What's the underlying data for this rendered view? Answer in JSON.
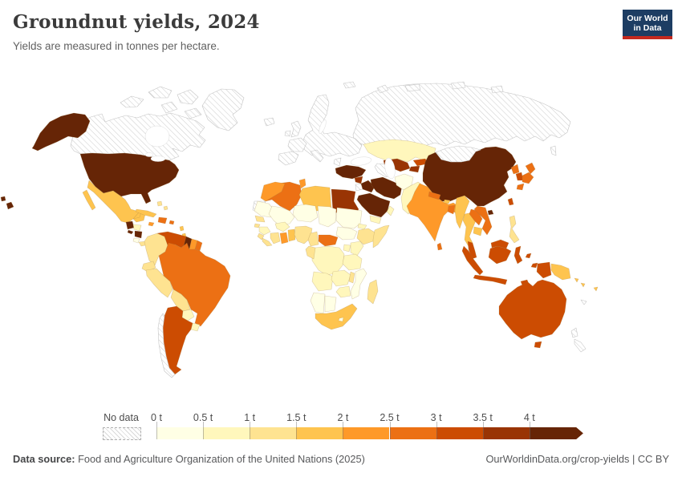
{
  "header": {
    "title": "Groundnut yields, 2024",
    "subtitle": "Yields are measured in tonnes per hectare.",
    "logo": {
      "line1": "Our World",
      "line2": "in Data",
      "bg_color": "#1d3d63",
      "accent_color": "#c5291f"
    }
  },
  "legend": {
    "no_data_label": "No data",
    "tick_labels": [
      "0 t",
      "0.5 t",
      "1 t",
      "1.5 t",
      "2 t",
      "2.5 t",
      "3 t",
      "3.5 t",
      "4 t"
    ],
    "palette": [
      "#ffffe5",
      "#fff7bc",
      "#fee391",
      "#fec44f",
      "#fe9929",
      "#ec7014",
      "#cc4c02",
      "#993404",
      "#662506"
    ]
  },
  "footer": {
    "source_label": "Data source:",
    "source_text": " Food and Agriculture Organization of the United Nations (2025)",
    "link_text": "OurWorldinData.org/crop-yields | CC BY"
  },
  "map": {
    "ocean_color": "#ffffff",
    "border_color": "#9c7a45",
    "nodata_border": "#c4c4c4",
    "hatch_line_color": "#cfcfcf"
  },
  "chart_data": {
    "type": "choropleth_map",
    "title": "Groundnut yields, 2024",
    "unit": "tonnes per hectare",
    "legend_bins": [
      "0 t",
      "0.5 t",
      "1 t",
      "1.5 t",
      "2 t",
      "2.5 t",
      "3 t",
      "3.5 t",
      "4 t"
    ],
    "bin_ranges": [
      "0–0.5 t",
      "0.5–1 t",
      "1–1.5 t",
      "1.5–2 t",
      "2–2.5 t",
      "2.5–3 t",
      "3–3.5 t",
      "3.5–4 t",
      "4+ t"
    ],
    "no_data_label": "No data",
    "regions": [
      {
        "id": "russia",
        "name": "Russia",
        "bucket": "nd"
      },
      {
        "id": "svalbard",
        "name": "Arctic islands",
        "bucket": "nd"
      },
      {
        "id": "canada",
        "name": "Canada",
        "bucket": "nd"
      },
      {
        "id": "canada_arctic",
        "name": "Canadian Arctic islands",
        "bucket": "nd"
      },
      {
        "id": "greenland",
        "name": "Greenland",
        "bucket": "nd"
      },
      {
        "id": "iceland",
        "name": "Iceland",
        "bucket": "nd"
      },
      {
        "id": "uk",
        "name": "United Kingdom",
        "bucket": "nd"
      },
      {
        "id": "ireland",
        "name": "Ireland",
        "bucket": "nd"
      },
      {
        "id": "europe",
        "name": "Europe (no data)",
        "bucket": "nd"
      },
      {
        "id": "iberia",
        "name": "Spain and Portugal",
        "bucket": "nd"
      },
      {
        "id": "france",
        "name": "France",
        "bucket": "nd"
      },
      {
        "id": "italy",
        "name": "Italy",
        "bucket": "nd"
      },
      {
        "id": "greece",
        "name": "Greece",
        "bucket": "nd"
      },
      {
        "id": "usa",
        "name": "United States",
        "bucket": 8
      },
      {
        "id": "mexico",
        "name": "Mexico",
        "bucket": 3
      },
      {
        "id": "guatemala",
        "name": "Guatemala",
        "bucket": 8
      },
      {
        "id": "elsalvador",
        "name": "El Salvador",
        "bucket": 8
      },
      {
        "id": "honduras",
        "name": "Honduras",
        "bucket": 1
      },
      {
        "id": "nicaragua",
        "name": "Nicaragua",
        "bucket": 8
      },
      {
        "id": "costarica",
        "name": "Costa Rica",
        "bucket": 0
      },
      {
        "id": "panama",
        "name": "Panama",
        "bucket": 2
      },
      {
        "id": "cuba",
        "name": "Cuba",
        "bucket": 3
      },
      {
        "id": "bahamas",
        "name": "Bahamas",
        "bucket": 2
      },
      {
        "id": "jamaica",
        "name": "Jamaica",
        "bucket": 4
      },
      {
        "id": "hispaniola",
        "name": "Hispaniola",
        "bucket": 5
      },
      {
        "id": "puertorico",
        "name": "Puerto Rico",
        "bucket": 5
      },
      {
        "id": "antilles",
        "name": "Lesser Antilles",
        "bucket": 3
      },
      {
        "id": "colombia",
        "name": "Colombia",
        "bucket": 2
      },
      {
        "id": "venezuela",
        "name": "Venezuela",
        "bucket": 6
      },
      {
        "id": "guyana",
        "name": "Guyana",
        "bucket": 8
      },
      {
        "id": "suriname",
        "name": "Suriname",
        "bucket": 4
      },
      {
        "id": "frguiana",
        "name": "French Guiana",
        "bucket": 5
      },
      {
        "id": "ecuador",
        "name": "Ecuador",
        "bucket": 2
      },
      {
        "id": "peru",
        "name": "Peru",
        "bucket": 2
      },
      {
        "id": "brazil",
        "name": "Brazil",
        "bucket": 5
      },
      {
        "id": "bolivia",
        "name": "Bolivia",
        "bucket": 2
      },
      {
        "id": "paraguay",
        "name": "Paraguay",
        "bucket": 1
      },
      {
        "id": "uruguay",
        "name": "Uruguay",
        "bucket": 1
      },
      {
        "id": "argentina",
        "name": "Argentina",
        "bucket": 6
      },
      {
        "id": "chile",
        "name": "Chile",
        "bucket": "nd"
      },
      {
        "id": "algeria",
        "name": "Algeria",
        "bucket": 5
      },
      {
        "id": "libya",
        "name": "Libya",
        "bucket": 3
      },
      {
        "id": "morocco",
        "name": "Morocco",
        "bucket": 4
      },
      {
        "id": "tunisia",
        "name": "Tunisia",
        "bucket": 4
      },
      {
        "id": "wsahara",
        "name": "Western Sahara",
        "bucket": "nd"
      },
      {
        "id": "egypt",
        "name": "Egypt",
        "bucket": 7
      },
      {
        "id": "mauritania",
        "name": "Mauritania",
        "bucket": 0
      },
      {
        "id": "mali",
        "name": "Mali",
        "bucket": 0
      },
      {
        "id": "niger",
        "name": "Niger",
        "bucket": 0
      },
      {
        "id": "chad",
        "name": "Chad",
        "bucket": 0
      },
      {
        "id": "sudan",
        "name": "Sudan",
        "bucket": 0
      },
      {
        "id": "eritrea",
        "name": "Eritrea",
        "bucket": 1
      },
      {
        "id": "ethiopia",
        "name": "Ethiopia",
        "bucket": 2
      },
      {
        "id": "somalia",
        "name": "Somalia",
        "bucket": 2
      },
      {
        "id": "senegal",
        "name": "Senegal",
        "bucket": 2
      },
      {
        "id": "guineabissau",
        "name": "Guinea-Bissau",
        "bucket": 2
      },
      {
        "id": "guinea",
        "name": "Guinea",
        "bucket": 1
      },
      {
        "id": "sierraleone",
        "name": "Sierra Leone",
        "bucket": 2
      },
      {
        "id": "liberia",
        "name": "Liberia",
        "bucket": 2
      },
      {
        "id": "ivorycoast",
        "name": "Cote d'Ivoire",
        "bucket": 2
      },
      {
        "id": "burkina",
        "name": "Burkina Faso",
        "bucket": 1
      },
      {
        "id": "ghana",
        "name": "Ghana",
        "bucket": 4
      },
      {
        "id": "togobenin",
        "name": "Togo and Benin",
        "bucket": 3
      },
      {
        "id": "nigeria",
        "name": "Nigeria",
        "bucket": 2
      },
      {
        "id": "cameroon",
        "name": "Cameroon",
        "bucket": 2
      },
      {
        "id": "car",
        "name": "Central African Republic",
        "bucket": 5
      },
      {
        "id": "ssudan",
        "name": "South Sudan",
        "bucket": 0
      },
      {
        "id": "drc",
        "name": "Democratic Republic of Congo",
        "bucket": 1
      },
      {
        "id": "gabon",
        "name": "Gabon and Congo",
        "bucket": 2
      },
      {
        "id": "uganda",
        "name": "Uganda",
        "bucket": 1
      },
      {
        "id": "kenya",
        "name": "Kenya",
        "bucket": 1
      },
      {
        "id": "tanzania",
        "name": "Tanzania",
        "bucket": 1
      },
      {
        "id": "angola",
        "name": "Angola",
        "bucket": 1
      },
      {
        "id": "zambia",
        "name": "Zambia",
        "bucket": 1
      },
      {
        "id": "malawi",
        "name": "Malawi",
        "bucket": 2
      },
      {
        "id": "mozambique",
        "name": "Mozambique",
        "bucket": 0
      },
      {
        "id": "zimbabwe",
        "name": "Zimbabwe",
        "bucket": 1
      },
      {
        "id": "namibia",
        "name": "Namibia",
        "bucket": 0
      },
      {
        "id": "botswana",
        "name": "Botswana",
        "bucket": 0
      },
      {
        "id": "safrica",
        "name": "South Africa",
        "bucket": 3
      },
      {
        "id": "lesotho",
        "name": "Lesotho",
        "bucket": 0
      },
      {
        "id": "madagascar",
        "name": "Madagascar",
        "bucket": 2
      },
      {
        "id": "turkey",
        "name": "Turkey",
        "bucket": 8
      },
      {
        "id": "jordan",
        "name": "Jordan",
        "bucket": "nd"
      },
      {
        "id": "syria",
        "name": "Syria",
        "bucket": 7
      },
      {
        "id": "iraq",
        "name": "Iraq",
        "bucket": 8
      },
      {
        "id": "iran",
        "name": "Iran",
        "bucket": 8
      },
      {
        "id": "saudi",
        "name": "Saudi Arabia",
        "bucket": 8
      },
      {
        "id": "yemen",
        "name": "Yemen",
        "bucket": 1
      },
      {
        "id": "oman",
        "name": "Oman",
        "bucket": 1
      },
      {
        "id": "kazakhstan",
        "name": "Kazakhstan",
        "bucket": 1
      },
      {
        "id": "uzbekistan",
        "name": "Uzbekistan",
        "bucket": 7
      },
      {
        "id": "turkmenistan",
        "name": "Turkmenistan",
        "bucket": "nd"
      },
      {
        "id": "kyrgyzstan",
        "name": "Kyrgyzstan",
        "bucket": 6
      },
      {
        "id": "tajikistan",
        "name": "Tajikistan",
        "bucket": 7
      },
      {
        "id": "afghanistan",
        "name": "Afghanistan",
        "bucket": 0
      },
      {
        "id": "pakistan",
        "name": "Pakistan",
        "bucket": 1
      },
      {
        "id": "china",
        "name": "China",
        "bucket": 8
      },
      {
        "id": "mongolia",
        "name": "Mongolia",
        "bucket": "nd"
      },
      {
        "id": "india",
        "name": "India",
        "bucket": 4
      },
      {
        "id": "nepal",
        "name": "Nepal",
        "bucket": 5
      },
      {
        "id": "bhutan",
        "name": "Bhutan",
        "bucket": 3
      },
      {
        "id": "bangladesh",
        "name": "Bangladesh",
        "bucket": 5
      },
      {
        "id": "srilanka",
        "name": "Sri Lanka",
        "bucket": 5
      },
      {
        "id": "myanmar",
        "name": "Myanmar",
        "bucket": 3
      },
      {
        "id": "thailand",
        "name": "Thailand",
        "bucket": 3
      },
      {
        "id": "laos",
        "name": "Laos",
        "bucket": 5
      },
      {
        "id": "vietnam",
        "name": "Vietnam",
        "bucket": 5
      },
      {
        "id": "cambodia",
        "name": "Cambodia",
        "bucket": 3
      },
      {
        "id": "taiwan",
        "name": "Taiwan",
        "bucket": 6
      },
      {
        "id": "nkorea",
        "name": "North Korea",
        "bucket": 5
      },
      {
        "id": "skorea",
        "name": "South Korea",
        "bucket": 6
      },
      {
        "id": "japan",
        "name": "Japan",
        "bucket": 5
      },
      {
        "id": "philippines",
        "name": "Philippines",
        "bucket": 2
      },
      {
        "id": "malaysia",
        "name": "Malaysia",
        "bucket": 6
      },
      {
        "id": "indonesia",
        "name": "Indonesia",
        "bucket": 6
      },
      {
        "id": "png",
        "name": "Papua New Guinea",
        "bucket": 3
      },
      {
        "id": "timor",
        "name": "Timor",
        "bucket": 6
      },
      {
        "id": "australia",
        "name": "Australia",
        "bucket": 6
      },
      {
        "id": "nz",
        "name": "New Zealand",
        "bucket": "nd"
      },
      {
        "id": "fiji",
        "name": "Fiji",
        "bucket": 3
      },
      {
        "id": "solomon",
        "name": "Solomon Islands",
        "bucket": 3
      },
      {
        "id": "newcaledonia",
        "name": "New Caledonia",
        "bucket": "nd"
      }
    ]
  }
}
